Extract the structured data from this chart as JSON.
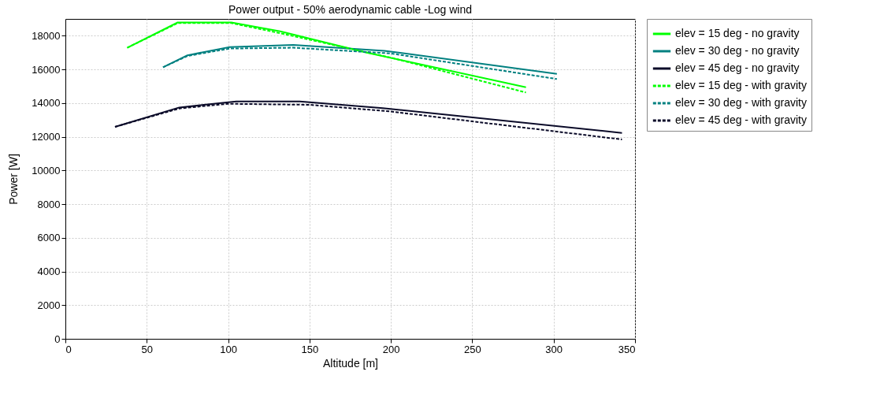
{
  "chart_data": {
    "type": "line",
    "title": "Power output - 50% aerodynamic cable -Log wind",
    "xlabel": "Altitude [m]",
    "ylabel": "Power [W]",
    "xlim": [
      0,
      350
    ],
    "xticks": [
      0,
      50,
      100,
      150,
      200,
      250,
      300,
      350
    ],
    "ylim": [
      0,
      19000
    ],
    "yticks": [
      0,
      2000,
      4000,
      6000,
      8000,
      10000,
      12000,
      14000,
      16000,
      18000
    ],
    "grid": true,
    "legend": "top right",
    "marker": "none",
    "series": [
      {
        "name": "elev = 15 deg - no gravity",
        "color": "#00ff00",
        "line_style": "solid",
        "x": [
          38,
          69,
          102,
          132,
          185,
          283
        ],
        "values": [
          17290,
          18790,
          18790,
          18260,
          17000,
          14940
        ]
      },
      {
        "name": "elev = 30 deg - no gravity",
        "color": "#008080",
        "line_style": "solid",
        "x": [
          60,
          75,
          101,
          140,
          196,
          302
        ],
        "values": [
          16130,
          16840,
          17330,
          17460,
          17110,
          15740
        ]
      },
      {
        "name": "elev = 45 deg - no gravity",
        "color": "#0a0a28",
        "line_style": "solid",
        "x": [
          30.5,
          70,
          105,
          144,
          195,
          342
        ],
        "values": [
          12590,
          13740,
          14100,
          14100,
          13700,
          12230
        ]
      },
      {
        "name": "elev = 15 deg - with gravity",
        "color": "#00ff00",
        "line_style": "dashed",
        "x": [
          38,
          69,
          102,
          132,
          200,
          283
        ],
        "values": [
          17290,
          18750,
          18750,
          18150,
          16700,
          14630
        ]
      },
      {
        "name": "elev = 30 deg - with gravity",
        "color": "#008080",
        "line_style": "dashed",
        "x": [
          60,
          75,
          101,
          140,
          200,
          302
        ],
        "values": [
          16130,
          16800,
          17240,
          17290,
          16950,
          15430
        ]
      },
      {
        "name": "elev = 45 deg - with gravity",
        "color": "#0a0a28",
        "line_style": "dashed",
        "x": [
          30.5,
          70,
          100,
          150,
          200,
          342
        ],
        "values": [
          12590,
          13680,
          13960,
          13900,
          13500,
          11840
        ]
      }
    ]
  }
}
